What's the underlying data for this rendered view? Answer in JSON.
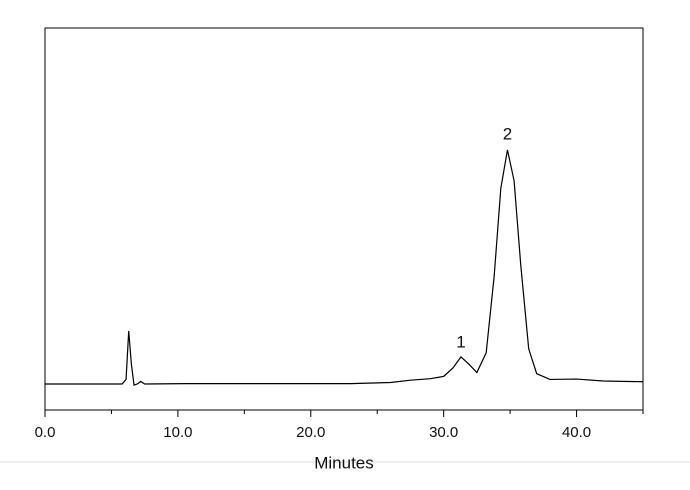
{
  "chart_data": {
    "type": "line",
    "x_label": "Minutes",
    "xlim": [
      0,
      45
    ],
    "xticks": [
      {
        "value": 0,
        "label": "0.0"
      },
      {
        "value": 10,
        "label": "10.0"
      },
      {
        "value": 20,
        "label": "20.0"
      },
      {
        "value": 30,
        "label": "30.0"
      },
      {
        "value": 40,
        "label": "40.0"
      }
    ],
    "xminorticks": [
      5,
      15,
      25,
      35,
      45
    ],
    "ylim": [
      0,
      100
    ],
    "color": "#000000",
    "x": [
      0,
      5.8,
      6.1,
      6.3,
      6.5,
      6.7,
      7.0,
      7.2,
      7.5,
      10.6,
      23,
      26,
      27.5,
      29,
      30,
      30.7,
      31.3,
      31.9,
      32.5,
      33.2,
      33.8,
      34.3,
      34.8,
      35.3,
      35.8,
      36.4,
      37.0,
      38,
      40,
      42,
      45
    ],
    "values": [
      6.8,
      6.8,
      8,
      20.7,
      12,
      6.5,
      6.9,
      7.5,
      6.8,
      6.9,
      6.9,
      7.2,
      7.8,
      8.2,
      8.8,
      11,
      13.9,
      12,
      9.8,
      15,
      35,
      58,
      68.1,
      60,
      38,
      16,
      9.5,
      8,
      8.1,
      7.6,
      7.4
    ],
    "annotations": [
      {
        "text": "1",
        "x": 31.3,
        "y": 17.5
      },
      {
        "text": "2",
        "x": 34.8,
        "y": 72
      }
    ]
  }
}
